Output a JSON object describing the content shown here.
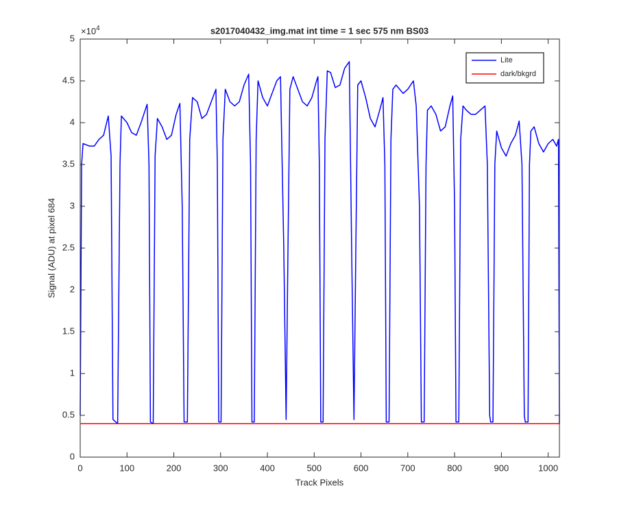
{
  "chart_data": {
    "type": "line",
    "title": "s2017040432_img.mat int time = 1 sec  575 nm BS03",
    "x_label": "Track Pixels",
    "y_label": "Signal (ADU) at pixel 684",
    "y_multiplier": "×10",
    "y_multiplier_exponent": "4",
    "xlim": [
      0,
      1024
    ],
    "xticks": [
      0,
      100,
      200,
      300,
      400,
      500,
      600,
      700,
      800,
      900,
      1000
    ],
    "ylim": [
      0,
      5
    ],
    "yticks": [
      0,
      0.5,
      1,
      1.5,
      2,
      2.5,
      3,
      3.5,
      4,
      4.5,
      5
    ],
    "grid": false,
    "legend": "upper right",
    "series": [
      {
        "name": "Lite",
        "color": "#0000ff",
        "x": [
          0,
          3,
          6,
          20,
          30,
          40,
          50,
          60,
          66,
          70,
          80,
          85,
          88,
          100,
          110,
          120,
          130,
          143,
          147,
          150,
          156,
          160,
          165,
          175,
          185,
          195,
          205,
          213,
          218,
          222,
          229,
          234,
          240,
          250,
          260,
          270,
          280,
          290,
          293,
          296,
          301,
          305,
          310,
          320,
          330,
          340,
          350,
          360,
          364,
          367,
          372,
          376,
          380,
          390,
          400,
          410,
          420,
          428,
          435,
          440,
          444,
          448,
          455,
          465,
          475,
          485,
          495,
          505,
          508,
          511,
          514,
          519,
          523,
          528,
          535,
          545,
          555,
          565,
          575,
          580,
          585,
          589,
          593,
          600,
          610,
          620,
          630,
          640,
          647,
          651,
          654,
          660,
          664,
          668,
          675,
          690,
          700,
          712,
          718,
          725,
          729,
          735,
          739,
          742,
          750,
          760,
          770,
          780,
          790,
          796,
          800,
          803,
          809,
          813,
          818,
          825,
          835,
          845,
          855,
          865,
          870,
          875,
          877,
          882,
          886,
          890,
          900,
          910,
          920,
          930,
          938,
          944,
          949,
          951,
          957,
          960,
          963,
          970,
          980,
          990,
          1000,
          1010,
          1018,
          1022,
          1024
        ],
        "values": [
          0.5,
          3.5,
          3.75,
          3.72,
          3.72,
          3.8,
          3.85,
          4.08,
          3.6,
          0.45,
          0.4,
          3.5,
          4.08,
          4.0,
          3.88,
          3.85,
          4.0,
          4.22,
          3.5,
          0.42,
          0.4,
          3.6,
          4.05,
          3.95,
          3.8,
          3.85,
          4.1,
          4.23,
          3.0,
          0.42,
          0.42,
          3.8,
          4.3,
          4.25,
          4.05,
          4.1,
          4.25,
          4.4,
          3.5,
          0.42,
          0.42,
          3.8,
          4.4,
          4.25,
          4.2,
          4.25,
          4.45,
          4.58,
          3.5,
          0.42,
          0.42,
          3.8,
          4.5,
          4.3,
          4.2,
          4.35,
          4.5,
          4.55,
          2.5,
          0.45,
          2.5,
          4.4,
          4.55,
          4.4,
          4.25,
          4.2,
          4.3,
          4.5,
          4.55,
          3.5,
          0.42,
          0.42,
          3.8,
          4.62,
          4.6,
          4.42,
          4.45,
          4.65,
          4.73,
          2.5,
          0.45,
          2.5,
          4.45,
          4.5,
          4.3,
          4.05,
          3.95,
          4.15,
          4.3,
          3.5,
          0.42,
          0.42,
          3.8,
          4.4,
          4.45,
          4.35,
          4.4,
          4.5,
          4.2,
          3.0,
          0.42,
          0.42,
          3.5,
          4.15,
          4.2,
          4.1,
          3.9,
          3.95,
          4.2,
          4.32,
          3.0,
          0.42,
          0.42,
          3.8,
          4.2,
          4.15,
          4.1,
          4.1,
          4.15,
          4.2,
          3.5,
          0.5,
          0.42,
          0.42,
          3.5,
          3.9,
          3.7,
          3.6,
          3.75,
          3.85,
          4.02,
          3.5,
          0.5,
          0.42,
          0.42,
          3.5,
          3.9,
          3.95,
          3.75,
          3.65,
          3.75,
          3.8,
          3.72,
          3.8,
          0.4
        ]
      },
      {
        "name": "dark/bkgrd",
        "color": "#ff0000",
        "x": [
          1,
          1024
        ],
        "values": [
          0.4,
          0.4
        ]
      }
    ]
  }
}
